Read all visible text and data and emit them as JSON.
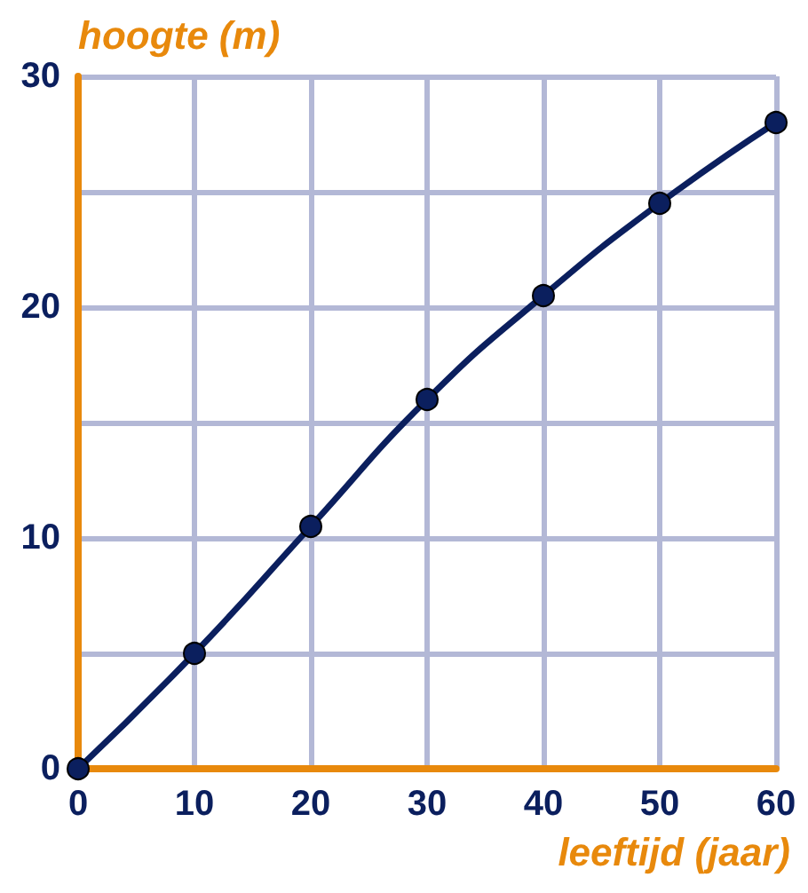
{
  "chart_data": {
    "type": "line",
    "xlabel": "leeftijd (jaar)",
    "ylabel": "hoogte (m)",
    "x": [
      0,
      10,
      20,
      30,
      40,
      50,
      60
    ],
    "series": [
      {
        "color": "#0b1f5e",
        "values": [
          0,
          5,
          10.5,
          16,
          20.5,
          24.5,
          28
        ]
      }
    ],
    "xlim": [
      0,
      60
    ],
    "xticks": [
      0,
      10,
      20,
      30,
      40,
      50,
      60
    ],
    "ylim": [
      0,
      30
    ],
    "yticks": [
      0,
      {
        "value": 5,
        "label": null
      },
      10,
      {
        "value": 15,
        "label": null
      },
      20,
      {
        "value": 25,
        "label": null
      },
      30
    ],
    "grid": true,
    "marker": "circle",
    "line_style": "solid"
  }
}
